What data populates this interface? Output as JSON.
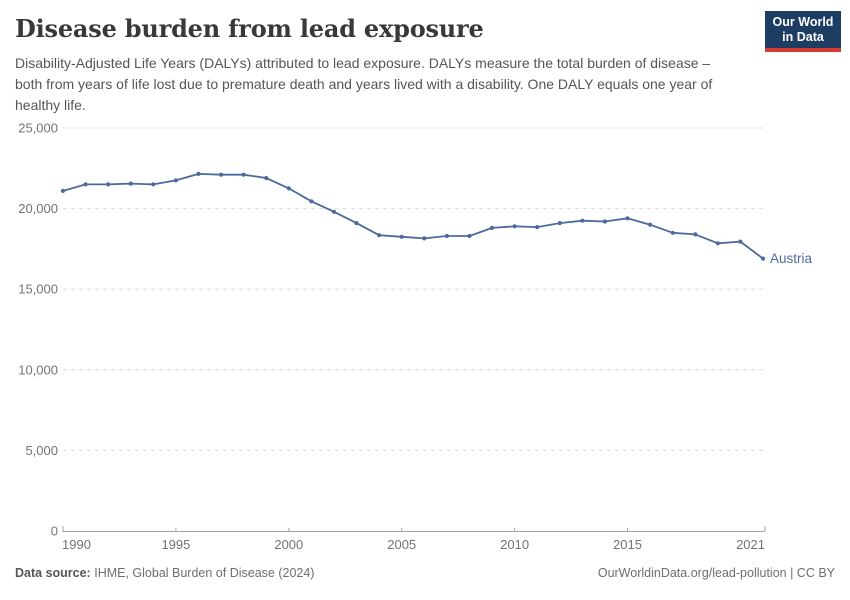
{
  "header": {
    "title": "Disease burden from lead exposure",
    "subtitle": "Disability-Adjusted Life Years (DALYs) attributed to lead exposure. DALYs measure the total burden of disease – both from years of life lost due to premature death and years lived with a disability. One DALY equals one year of healthy life.",
    "logo": {
      "line1": "Our World",
      "line2": "in Data",
      "bg_color": "#1d3d63",
      "bar_color": "#d73c34"
    }
  },
  "chart_data": {
    "type": "line",
    "title": "Disease burden from lead exposure",
    "ylabel": "",
    "xlabel": "",
    "xlim": [
      1990,
      2021
    ],
    "ylim": [
      0,
      25000
    ],
    "grid": "horizontal-dashed",
    "legend": "end-of-line-label",
    "xticks": {
      "values": [
        1990,
        1995,
        2000,
        2005,
        2010,
        2015,
        2021
      ],
      "labels": [
        "1990",
        "1995",
        "2000",
        "2005",
        "2010",
        "2015",
        "2021"
      ]
    },
    "yticks": {
      "values": [
        0,
        5000,
        10000,
        15000,
        20000,
        25000
      ],
      "labels": [
        "0",
        "5,000",
        "10,000",
        "15,000",
        "20,000",
        "25,000"
      ]
    },
    "x": [
      1990,
      1991,
      1992,
      1993,
      1994,
      1995,
      1996,
      1997,
      1998,
      1999,
      2000,
      2001,
      2002,
      2003,
      2004,
      2005,
      2006,
      2007,
      2008,
      2009,
      2010,
      2011,
      2012,
      2013,
      2014,
      2015,
      2016,
      2017,
      2018,
      2019,
      2020,
      2021
    ],
    "series": [
      {
        "name": "Austria",
        "color": "#4C6A9C",
        "values": [
          21100,
          21500,
          21500,
          21550,
          21500,
          21750,
          22150,
          22100,
          22100,
          21900,
          21250,
          20450,
          19800,
          19100,
          18350,
          18250,
          18150,
          18300,
          18300,
          18800,
          18900,
          18850,
          19100,
          19250,
          19200,
          19400,
          19000,
          18500,
          18400,
          17850,
          17950,
          16900
        ]
      }
    ],
    "colors": {
      "grid": "#dddddd",
      "axis": "#a3a3a3",
      "tick_text": "#737373"
    }
  },
  "footer": {
    "source_label": "Data source:",
    "source_value": "IHME, Global Burden of Disease (2024)",
    "link": "OurWorldinData.org/lead-pollution | CC BY"
  }
}
